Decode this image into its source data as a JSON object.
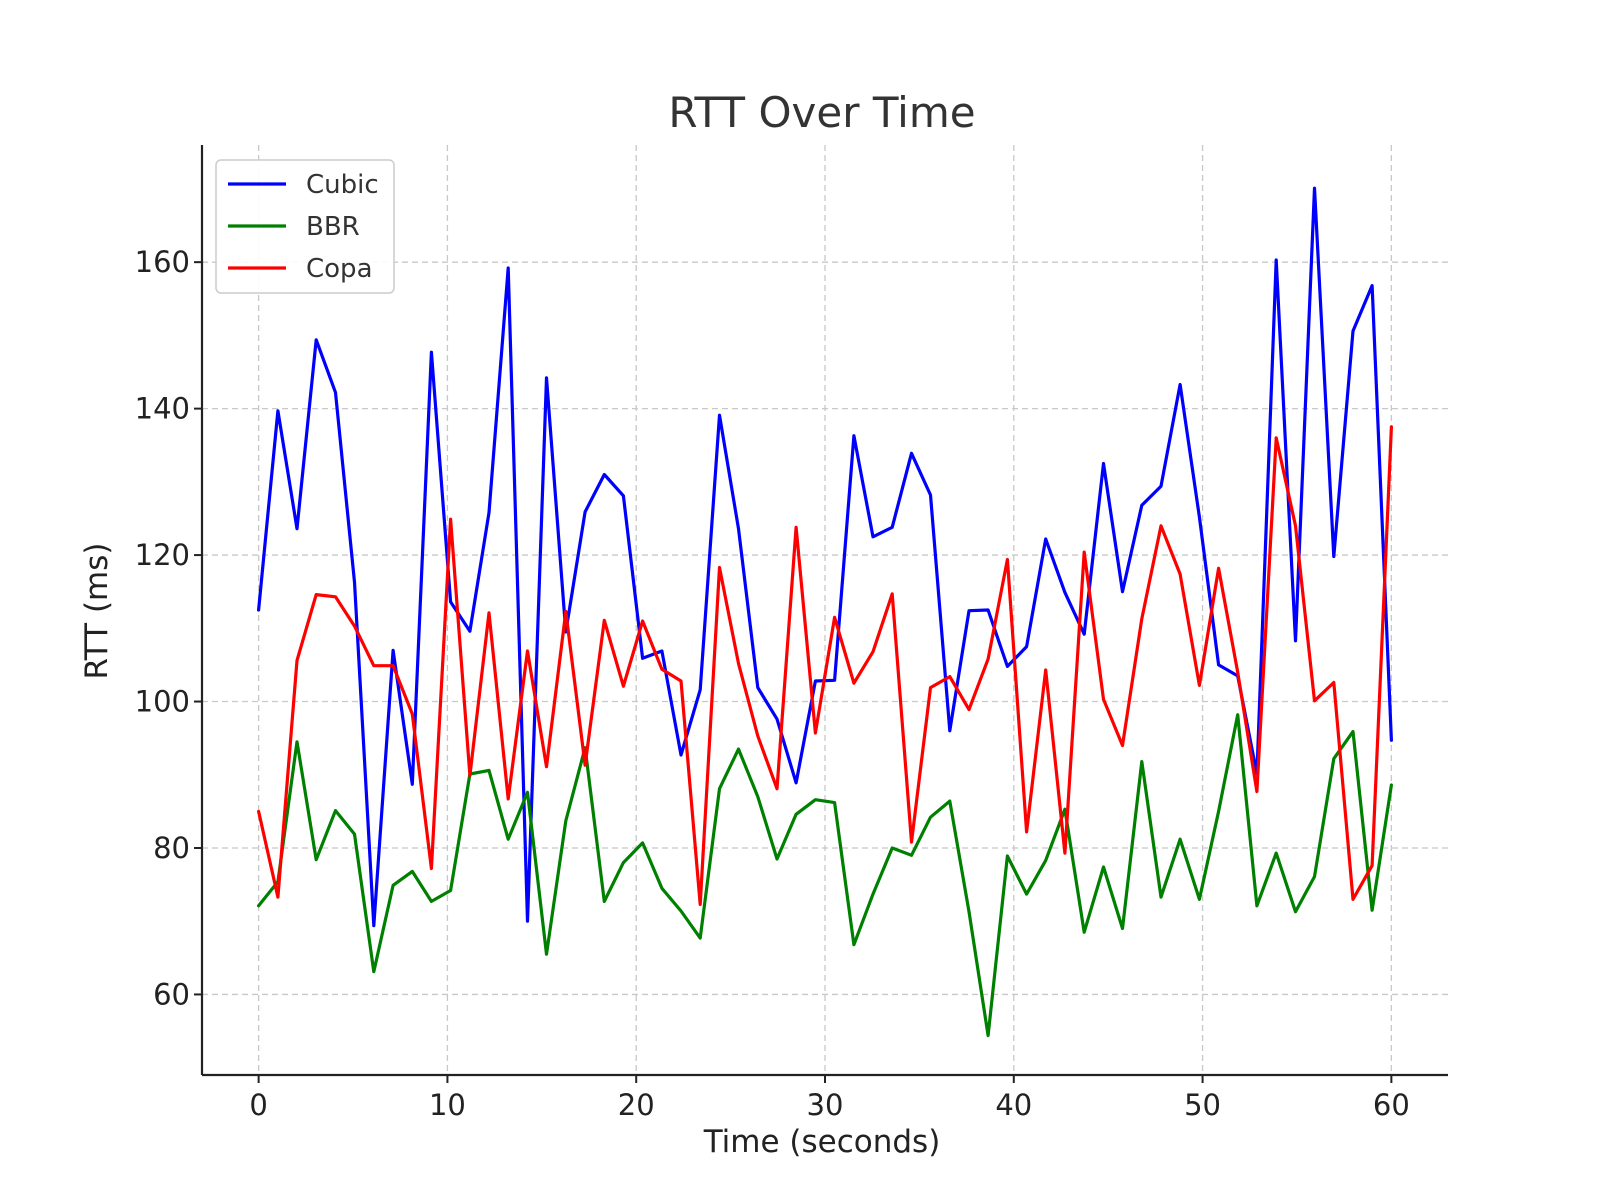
{
  "chart_data": {
    "type": "line",
    "title": "RTT Over Time",
    "xlabel": "Time (seconds)",
    "ylabel": "RTT (ms)",
    "xlim": [
      -3,
      63
    ],
    "ylim": [
      49,
      176
    ],
    "xticks": [
      0,
      10,
      20,
      30,
      40,
      50,
      60
    ],
    "yticks": [
      60,
      80,
      100,
      120,
      140,
      160
    ],
    "grid": true,
    "legend_position": "top-left",
    "x": [
      0.0,
      1.02,
      2.03,
      3.05,
      4.07,
      5.08,
      6.1,
      7.12,
      8.14,
      9.15,
      10.17,
      11.19,
      12.2,
      13.22,
      14.24,
      15.25,
      16.27,
      17.29,
      18.31,
      19.32,
      20.34,
      21.36,
      22.37,
      23.39,
      24.41,
      25.42,
      26.44,
      27.46,
      28.47,
      29.49,
      30.51,
      31.53,
      32.54,
      33.56,
      34.58,
      35.59,
      36.61,
      37.63,
      38.64,
      39.66,
      40.68,
      41.69,
      42.71,
      43.73,
      44.75,
      45.76,
      46.78,
      47.8,
      48.81,
      49.83,
      50.85,
      51.86,
      52.88,
      53.9,
      54.92,
      55.93,
      56.95,
      57.97,
      58.98,
      60.0
    ],
    "series": [
      {
        "name": "Cubic",
        "color": "#0000ff",
        "values": [
          112.5,
          139.7,
          123.6,
          149.4,
          142.2,
          116.3,
          69.4,
          107.0,
          88.7,
          147.7,
          113.6,
          109.6,
          125.8,
          159.2,
          70.0,
          144.2,
          109.5,
          125.9,
          131.0,
          128.1,
          105.9,
          106.9,
          92.7,
          101.6,
          139.1,
          123.6,
          101.9,
          97.6,
          88.9,
          102.8,
          102.9,
          136.3,
          122.5,
          123.8,
          133.9,
          128.2,
          96.0,
          112.4,
          112.5,
          104.8,
          107.5,
          122.2,
          114.9,
          109.2,
          132.5,
          115.0,
          126.8,
          129.4,
          143.3,
          125.2,
          105.0,
          103.5,
          90.1,
          160.3,
          108.3,
          170.1,
          119.8,
          150.6,
          156.8,
          94.7
        ]
      },
      {
        "name": "BBR",
        "color": "#008000",
        "values": [
          72.1,
          75.4,
          94.5,
          78.4,
          85.1,
          81.9,
          63.1,
          74.9,
          76.8,
          72.7,
          74.2,
          90.1,
          90.6,
          81.2,
          87.6,
          65.5,
          83.7,
          93.7,
          72.7,
          78.0,
          80.7,
          74.5,
          71.4,
          67.7,
          88.1,
          93.5,
          87.0,
          78.5,
          84.6,
          86.6,
          86.2,
          66.8,
          73.7,
          80.0,
          79.0,
          84.2,
          86.4,
          71.3,
          54.4,
          78.9,
          73.7,
          78.3,
          85.3,
          68.5,
          77.4,
          69.0,
          91.8,
          73.3,
          81.2,
          73.0,
          85.0,
          98.2,
          72.1,
          79.3,
          71.3,
          76.1,
          92.2,
          95.9,
          71.5,
          88.6
        ]
      },
      {
        "name": "Copa",
        "color": "#ff0000",
        "values": [
          85.0,
          73.3,
          105.6,
          114.6,
          114.3,
          110.3,
          104.9,
          104.9,
          98.3,
          77.2,
          124.9,
          89.9,
          112.1,
          86.7,
          106.9,
          91.1,
          112.3,
          91.3,
          111.1,
          102.1,
          111.0,
          104.4,
          102.8,
          72.3,
          118.3,
          105.2,
          95.3,
          88.1,
          123.8,
          95.7,
          111.5,
          102.5,
          106.8,
          114.7,
          80.8,
          101.9,
          103.4,
          98.9,
          105.8,
          119.4,
          82.2,
          104.3,
          79.3,
          120.4,
          100.3,
          94.0,
          111.3,
          124.0,
          117.4,
          102.2,
          118.2,
          104.0,
          87.7,
          136.0,
          124.0,
          100.1,
          102.6,
          73.0,
          77.6,
          137.5
        ]
      }
    ]
  }
}
